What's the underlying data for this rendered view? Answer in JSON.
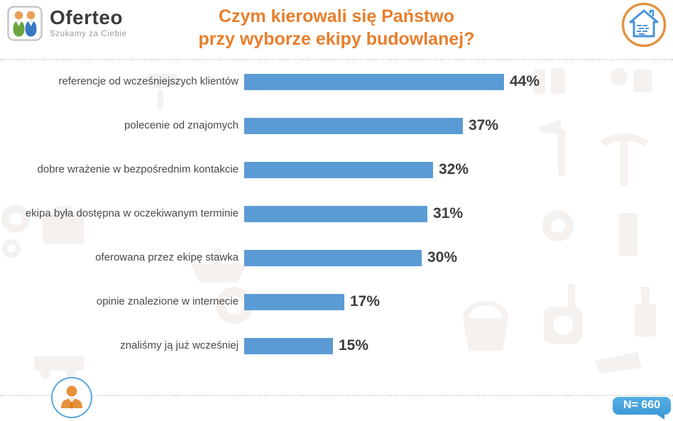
{
  "brand": {
    "name": "Oferteo",
    "tagline": "Szukamy za Ciebie"
  },
  "header": {
    "title_line1": "Czym kierowali się Państwo",
    "title_line2": "przy wyborze ekipy budowlanej?"
  },
  "chart_data": {
    "type": "bar",
    "orientation": "horizontal",
    "title": "Czym kierowali się Państwo przy wyborze ekipy budowlanej?",
    "categories": [
      "referencje od wcześniejszych klientów",
      "polecenie od znajomych",
      "dobre wrażenie w bezpośrednim kontakcie",
      "ekipa była dostępna w oczekiwanym terminie",
      "oferowana przez ekipę stawka",
      "opinie znalezione w internecie",
      "znaliśmy ją już wcześniej"
    ],
    "values": [
      44,
      37,
      32,
      31,
      30,
      17,
      15
    ],
    "value_suffix": "%",
    "value_axis_max": 48,
    "grid": false,
    "legend": false,
    "bar_color": "#5B9BD5",
    "value_label_color": "#3d3d3d"
  },
  "footer": {
    "sample_size_label": "N= 660"
  },
  "colors": {
    "accent_orange": "#E87E2B",
    "bar_blue": "#5B9BD5",
    "badge_blue": "#45A2DE",
    "text_dark": "#3D3D3D",
    "tagline_gray": "#9B9B9B"
  },
  "icons": {
    "logo": "oferteo-two-people-logo",
    "top_right": "house-icon",
    "bottom_left": "person-icon",
    "badge": "speech-bubble",
    "background": "construction-tools-watermark"
  }
}
